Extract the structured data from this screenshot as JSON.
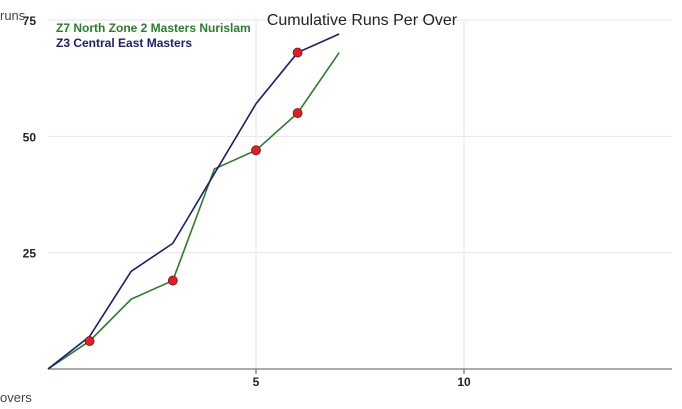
{
  "chart_data": {
    "type": "line",
    "title": "Cumulative Runs Per Over",
    "xlabel": "overs",
    "ylabel": "runs",
    "xlim": [
      0,
      15
    ],
    "ylim": [
      0,
      75
    ],
    "x_ticks": [
      5,
      10
    ],
    "y_ticks": [
      25,
      50,
      75
    ],
    "grid": true,
    "legend_position": "top-left",
    "series": [
      {
        "name": "Z7 North Zone 2 Masters Nurislam",
        "color": "#2a7d2a",
        "x": [
          0,
          1,
          2,
          3,
          4,
          5,
          6,
          7
        ],
        "values": [
          0,
          6,
          15,
          19,
          43,
          47,
          55,
          68
        ],
        "wickets_at": [
          1,
          3,
          5,
          6
        ]
      },
      {
        "name": "Z3 Central East Masters",
        "color": "#1c1c72",
        "x": [
          0,
          1,
          2,
          3,
          4,
          5,
          6,
          7
        ],
        "values": [
          0,
          7,
          21,
          27,
          42,
          57,
          68,
          72
        ],
        "wickets_at": [
          6
        ]
      }
    ],
    "marker_color": "#e02020"
  }
}
